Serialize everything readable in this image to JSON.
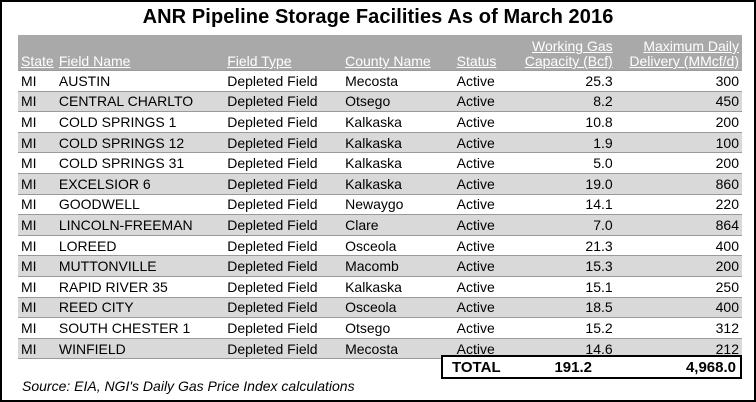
{
  "title": "ANR Pipeline Storage Facilities As of March 2016",
  "table": {
    "headers": {
      "state": "State",
      "field_name": "Field Name",
      "field_type": "Field Type",
      "county_name": "County Name",
      "status": "Status",
      "capacity_line1": "Working Gas",
      "capacity_line2": "Capacity (Bcf)",
      "delivery_line1": "Maximum Daily",
      "delivery_line2": "Delivery (MMcf/d)"
    },
    "rows": [
      {
        "state": "MI",
        "field": "AUSTIN",
        "type": "Depleted Field",
        "county": "Mecosta",
        "status": "Active",
        "capacity": "25.3",
        "delivery": "300"
      },
      {
        "state": "MI",
        "field": "CENTRAL CHARLTO",
        "type": "Depleted Field",
        "county": "Otsego",
        "status": "Active",
        "capacity": "8.2",
        "delivery": "450"
      },
      {
        "state": "MI",
        "field": "COLD SPRINGS 1",
        "type": "Depleted Field",
        "county": "Kalkaska",
        "status": "Active",
        "capacity": "10.8",
        "delivery": "200"
      },
      {
        "state": "MI",
        "field": "COLD SPRINGS 12",
        "type": "Depleted Field",
        "county": "Kalkaska",
        "status": "Active",
        "capacity": "1.9",
        "delivery": "100"
      },
      {
        "state": "MI",
        "field": "COLD SPRINGS 31",
        "type": "Depleted Field",
        "county": "Kalkaska",
        "status": "Active",
        "capacity": "5.0",
        "delivery": "200"
      },
      {
        "state": "MI",
        "field": "EXCELSIOR 6",
        "type": "Depleted Field",
        "county": "Kalkaska",
        "status": "Active",
        "capacity": "19.0",
        "delivery": "860"
      },
      {
        "state": "MI",
        "field": "GOODWELL",
        "type": "Depleted Field",
        "county": "Newaygo",
        "status": "Active",
        "capacity": "14.1",
        "delivery": "220"
      },
      {
        "state": "MI",
        "field": "LINCOLN-FREEMAN",
        "type": "Depleted Field",
        "county": "Clare",
        "status": "Active",
        "capacity": "7.0",
        "delivery": "864"
      },
      {
        "state": "MI",
        "field": "LOREED",
        "type": "Depleted Field",
        "county": "Osceola",
        "status": "Active",
        "capacity": "21.3",
        "delivery": "400"
      },
      {
        "state": "MI",
        "field": "MUTTONVILLE",
        "type": "Depleted Field",
        "county": "Macomb",
        "status": "Active",
        "capacity": "15.3",
        "delivery": "200"
      },
      {
        "state": "MI",
        "field": "RAPID RIVER 35",
        "type": "Depleted Field",
        "county": "Kalkaska",
        "status": "Active",
        "capacity": "15.1",
        "delivery": "250"
      },
      {
        "state": "MI",
        "field": "REED CITY",
        "type": "Depleted Field",
        "county": "Osceola",
        "status": "Active",
        "capacity": "18.5",
        "delivery": "400"
      },
      {
        "state": "MI",
        "field": "SOUTH CHESTER 1",
        "type": "Depleted Field",
        "county": "Otsego",
        "status": "Active",
        "capacity": "15.2",
        "delivery": "312"
      },
      {
        "state": "MI",
        "field": "WINFIELD",
        "type": "Depleted Field",
        "county": "Mecosta",
        "status": "Active",
        "capacity": "14.6",
        "delivery": "212"
      }
    ]
  },
  "total": {
    "label": "TOTAL",
    "capacity": "191.2",
    "delivery": "4,968.0"
  },
  "source": "Source: EIA, NGI's Daily Gas Price Index calculations"
}
